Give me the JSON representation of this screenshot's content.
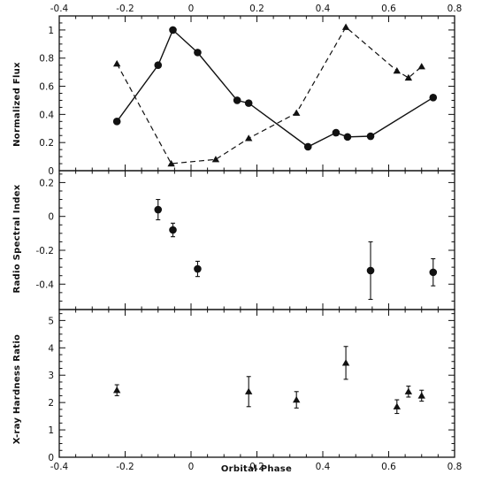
{
  "chart_data": [
    {
      "type": "line",
      "panel": "top",
      "xlabel": "",
      "ylabel": "Normalized Flux",
      "xlim": [
        -0.4,
        0.8
      ],
      "ylim": [
        0,
        1.1
      ],
      "xticks": [
        "-0.4",
        "-0.2",
        "0",
        "0.2",
        "0.4",
        "0.6",
        "0.8"
      ],
      "yticks": [
        "0",
        "0.2",
        "0.4",
        "0.6",
        "0.8",
        "1"
      ],
      "top_axis_labels": true,
      "series": [
        {
          "marker": "circle",
          "line": "solid",
          "points": [
            {
              "x": -0.225,
              "y": 0.35
            },
            {
              "x": -0.1,
              "y": 0.75
            },
            {
              "x": -0.055,
              "y": 1.0
            },
            {
              "x": 0.02,
              "y": 0.84
            },
            {
              "x": 0.14,
              "y": 0.5
            },
            {
              "x": 0.175,
              "y": 0.48
            },
            {
              "x": 0.355,
              "y": 0.17
            },
            {
              "x": 0.44,
              "y": 0.27
            },
            {
              "x": 0.475,
              "y": 0.24
            },
            {
              "x": 0.545,
              "y": 0.245
            },
            {
              "x": 0.735,
              "y": 0.52
            }
          ]
        },
        {
          "marker": "triangle",
          "line": "dashed",
          "points": [
            {
              "x": -0.225,
              "y": 0.76
            },
            {
              "x": -0.06,
              "y": 0.05
            },
            {
              "x": 0.075,
              "y": 0.08
            },
            {
              "x": 0.175,
              "y": 0.23
            },
            {
              "x": 0.32,
              "y": 0.41
            },
            {
              "x": 0.47,
              "y": 1.02
            },
            {
              "x": 0.625,
              "y": 0.71
            },
            {
              "x": 0.66,
              "y": 0.66
            },
            {
              "x": 0.7,
              "y": 0.74
            }
          ]
        }
      ]
    },
    {
      "type": "scatter",
      "panel": "middle",
      "xlabel": "",
      "ylabel": "Radio Spectral Index",
      "xlim": [
        -0.4,
        0.8
      ],
      "ylim": [
        -0.55,
        0.27
      ],
      "yticks": [
        "-0.4",
        "-0.2",
        "0",
        "0.2"
      ],
      "series": [
        {
          "marker": "circle",
          "points": [
            {
              "x": -0.1,
              "y": 0.04,
              "err": 0.06
            },
            {
              "x": -0.055,
              "y": -0.08,
              "err": 0.04
            },
            {
              "x": 0.02,
              "y": -0.31,
              "err": 0.045
            },
            {
              "x": 0.545,
              "y": -0.32,
              "err": 0.17
            },
            {
              "x": 0.735,
              "y": -0.33,
              "err": 0.08
            }
          ]
        }
      ]
    },
    {
      "type": "scatter",
      "panel": "bottom",
      "xlabel": "Orbital Phase",
      "ylabel": "X-ray Hardness Ratio",
      "xlim": [
        -0.4,
        0.8
      ],
      "ylim": [
        0,
        5.4
      ],
      "xticks": [
        "-0.4",
        "-0.2",
        "0",
        "0.2",
        "0.4",
        "0.6",
        "0.8"
      ],
      "yticks": [
        "0",
        "1",
        "2",
        "3",
        "4",
        "5"
      ],
      "series": [
        {
          "marker": "triangle",
          "points": [
            {
              "x": -0.225,
              "y": 2.45,
              "err": 0.2
            },
            {
              "x": 0.175,
              "y": 2.4,
              "err": 0.55
            },
            {
              "x": 0.32,
              "y": 2.1,
              "err": 0.3
            },
            {
              "x": 0.47,
              "y": 3.45,
              "err": 0.6
            },
            {
              "x": 0.625,
              "y": 1.85,
              "err": 0.25
            },
            {
              "x": 0.66,
              "y": 2.4,
              "err": 0.2
            },
            {
              "x": 0.7,
              "y": 2.25,
              "err": 0.2
            }
          ]
        }
      ]
    }
  ]
}
